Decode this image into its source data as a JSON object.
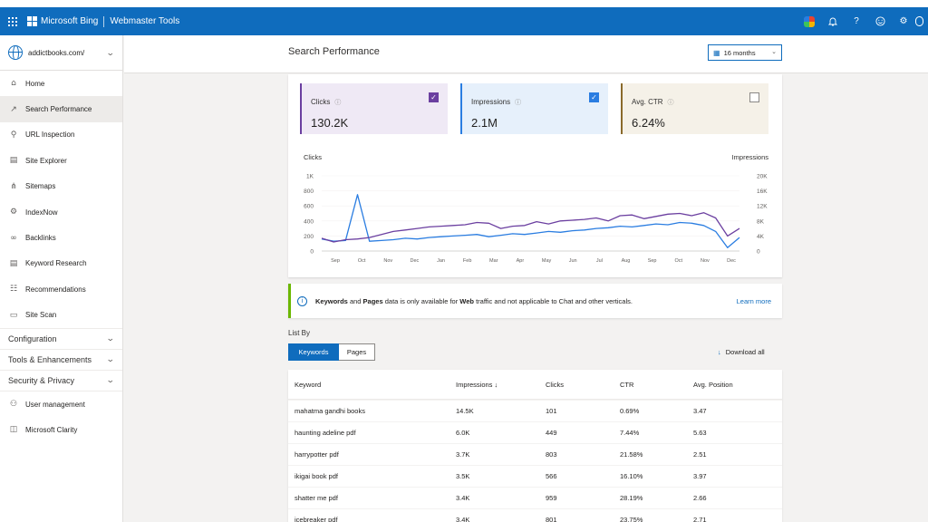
{
  "topbar": {
    "brand": "Microsoft Bing",
    "product": "Webmaster Tools",
    "icons": [
      "copilot-icon",
      "bell-icon",
      "help-icon",
      "smiley-icon",
      "gear-icon"
    ]
  },
  "sidebar": {
    "site": "addictbooks.com/",
    "items": [
      {
        "label": "Home",
        "icon": "home-icon",
        "glyph": "⌂"
      },
      {
        "label": "Search Performance",
        "icon": "trend-icon",
        "glyph": "↗",
        "active": true
      },
      {
        "label": "URL Inspection",
        "icon": "search-icon",
        "glyph": "⚲"
      },
      {
        "label": "Site Explorer",
        "icon": "document-icon",
        "glyph": "▤"
      },
      {
        "label": "Sitemaps",
        "icon": "sitemap-icon",
        "glyph": "⋔"
      },
      {
        "label": "IndexNow",
        "icon": "gear-icon",
        "glyph": "⚙"
      },
      {
        "label": "Backlinks",
        "icon": "link-icon",
        "glyph": "∞"
      },
      {
        "label": "Keyword Research",
        "icon": "list-document-icon",
        "glyph": "▤"
      },
      {
        "label": "Recommendations",
        "icon": "checklist-icon",
        "glyph": "☷"
      },
      {
        "label": "Site Scan",
        "icon": "scan-icon",
        "glyph": "▭"
      }
    ],
    "groups": [
      "Configuration",
      "Tools & Enhancements",
      "Security & Privacy"
    ],
    "bottom_items": [
      {
        "label": "User management",
        "icon": "person-icon",
        "glyph": "⚇"
      },
      {
        "label": "Microsoft Clarity",
        "icon": "clarity-icon",
        "glyph": "◫"
      }
    ]
  },
  "header": {
    "title": "Search Performance",
    "range": "16 months"
  },
  "metrics": [
    {
      "label": "Clicks",
      "value": "130.2K",
      "checked": true,
      "color": "#6b3fa0",
      "bg": "#efe9f5"
    },
    {
      "label": "Impressions",
      "value": "2.1M",
      "checked": true,
      "color": "#2a7de1",
      "bg": "#e6f0fb"
    },
    {
      "label": "Avg. CTR",
      "value": "6.24%",
      "checked": false,
      "color": "#8a6a2b",
      "bg": "#f5f1e8"
    }
  ],
  "chart_data": {
    "type": "line",
    "left_axis_label": "Clicks",
    "right_axis_label": "Impressions",
    "left_ticks": [
      "0",
      "200",
      "400",
      "600",
      "800",
      "1K"
    ],
    "right_ticks": [
      "0",
      "4K",
      "8K",
      "12K",
      "16K",
      "20K"
    ],
    "ylim_left": [
      0,
      1000
    ],
    "ylim_right": [
      0,
      20000
    ],
    "x_ticks": [
      "Sep",
      "Oct",
      "Nov",
      "Dec",
      "Jan",
      "Feb",
      "Mar",
      "Apr",
      "May",
      "Jun",
      "Jul",
      "Aug",
      "Sep",
      "Oct",
      "Nov",
      "Dec"
    ],
    "series": [
      {
        "name": "Clicks",
        "axis": "left",
        "color": "#6b3fa0",
        "values": [
          170,
          120,
          150,
          160,
          180,
          220,
          260,
          280,
          300,
          320,
          330,
          340,
          350,
          380,
          370,
          300,
          330,
          340,
          390,
          360,
          400,
          410,
          420,
          440,
          400,
          470,
          480,
          430,
          460,
          490,
          500,
          470,
          510,
          440,
          200,
          300
        ]
      },
      {
        "name": "Impressions",
        "axis": "right",
        "color": "#2a7de1",
        "values": [
          3200,
          2600,
          2800,
          15000,
          2600,
          2800,
          3000,
          3400,
          3200,
          3600,
          3800,
          4000,
          4200,
          4400,
          3800,
          4200,
          4600,
          4400,
          4800,
          5200,
          5000,
          5400,
          5600,
          6000,
          6200,
          6600,
          6400,
          6800,
          7200,
          7000,
          7600,
          7400,
          6800,
          5200,
          900,
          3600
        ]
      }
    ]
  },
  "banner": {
    "kw": "Keywords",
    "and": " and ",
    "pages": "Pages",
    "mid": " data is only available for ",
    "web": "Web",
    "rest": " traffic and not applicable to Chat and other verticals.",
    "link": "Learn more"
  },
  "list": {
    "title": "List By",
    "tabs": [
      "Keywords",
      "Pages"
    ],
    "download": "Download all"
  },
  "table": {
    "headers": [
      "Keyword",
      "Impressions ↓",
      "Clicks",
      "CTR",
      "Avg. Position"
    ],
    "rows": [
      [
        "mahatma gandhi books",
        "14.5K",
        "101",
        "0.69%",
        "3.47"
      ],
      [
        "haunting adeline pdf",
        "6.0K",
        "449",
        "7.44%",
        "5.63"
      ],
      [
        "harrypotter pdf",
        "3.7K",
        "803",
        "21.58%",
        "2.51"
      ],
      [
        "ikigai book pdf",
        "3.5K",
        "566",
        "16.10%",
        "3.97"
      ],
      [
        "shatter me pdf",
        "3.4K",
        "959",
        "28.19%",
        "2.66"
      ],
      [
        "icebreaker pdf",
        "3.4K",
        "801",
        "23.75%",
        "2.71"
      ]
    ]
  }
}
